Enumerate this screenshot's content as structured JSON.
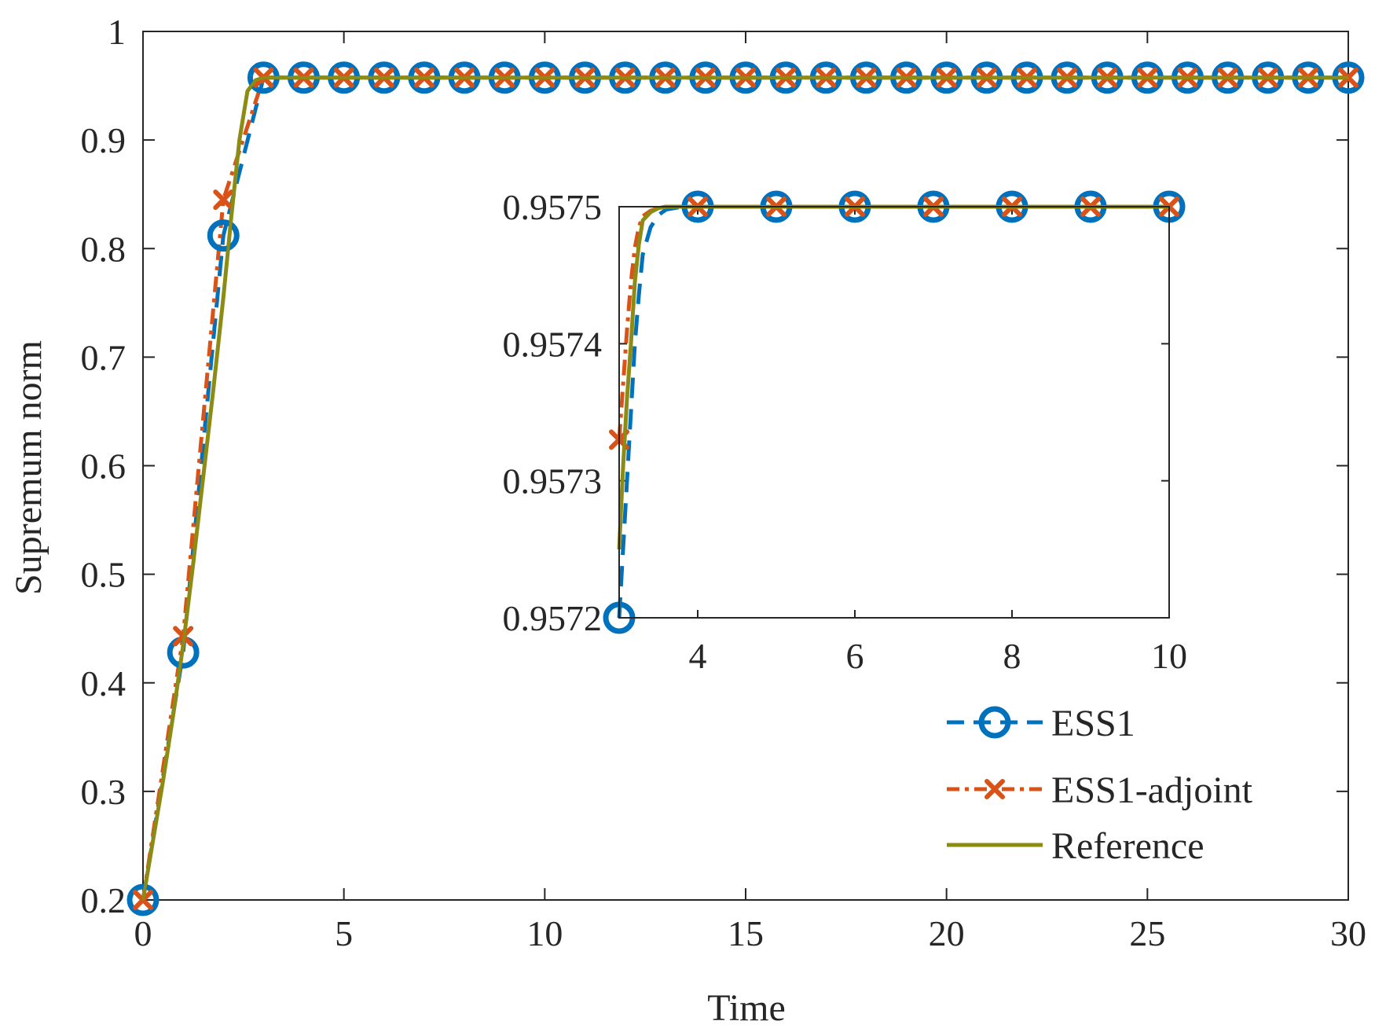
{
  "chart_data": {
    "type": "line",
    "title": "",
    "xlabel": "Time",
    "ylabel": "Supremum norm",
    "xlim": [
      0,
      30
    ],
    "ylim": [
      0.2,
      1
    ],
    "xticks": [
      "0",
      "5",
      "10",
      "15",
      "20",
      "25",
      "30"
    ],
    "yticks": [
      "0.2",
      "0.3",
      "0.4",
      "0.5",
      "0.6",
      "0.7",
      "0.8",
      "0.9",
      "1"
    ],
    "grid": false,
    "legend": {
      "placement": "bottom-right",
      "entries": [
        "ESS1",
        "ESS1-adjoint",
        "Reference"
      ]
    },
    "colors": {
      "ESS1": "#0072BD",
      "ESS1-adjoint": "#D95319",
      "Reference": "#8C8C14",
      "axes": "#262626"
    },
    "series": [
      {
        "name": "ESS1",
        "style": "dashed line with circle markers",
        "x": [
          0,
          1,
          2,
          3,
          4,
          5,
          6,
          7,
          8,
          9,
          10,
          11,
          12,
          13,
          14,
          15,
          16,
          17,
          18,
          19,
          20,
          21,
          22,
          23,
          24,
          25,
          26,
          27,
          28,
          29,
          30
        ],
        "y": [
          0.2,
          0.428,
          0.812,
          0.9575,
          0.9575,
          0.9575,
          0.9575,
          0.9575,
          0.9575,
          0.9575,
          0.9575,
          0.9575,
          0.9575,
          0.9575,
          0.9575,
          0.9575,
          0.9575,
          0.9575,
          0.9575,
          0.9575,
          0.9575,
          0.9575,
          0.9575,
          0.9575,
          0.9575,
          0.9575,
          0.9575,
          0.9575,
          0.9575,
          0.9575,
          0.9575
        ]
      },
      {
        "name": "ESS1-adjoint",
        "style": "dash-dot line with x markers",
        "x": [
          0,
          1,
          2,
          3,
          4,
          5,
          6,
          7,
          8,
          9,
          10,
          11,
          12,
          13,
          14,
          15,
          16,
          17,
          18,
          19,
          20,
          21,
          22,
          23,
          24,
          25,
          26,
          27,
          28,
          29,
          30
        ],
        "y": [
          0.2,
          0.443,
          0.845,
          0.9575,
          0.9575,
          0.9575,
          0.9575,
          0.9575,
          0.9575,
          0.9575,
          0.9575,
          0.9575,
          0.9575,
          0.9575,
          0.9575,
          0.9575,
          0.9575,
          0.9575,
          0.9575,
          0.9575,
          0.9575,
          0.9575,
          0.9575,
          0.9575,
          0.9575,
          0.9575,
          0.9575,
          0.9575,
          0.9575,
          0.9575,
          0.9575
        ]
      },
      {
        "name": "Reference",
        "style": "solid line",
        "x": [
          0,
          0.25,
          0.5,
          0.75,
          1,
          1.25,
          1.5,
          1.75,
          2,
          2.2,
          2.4,
          2.6,
          2.8,
          3,
          30
        ],
        "y": [
          0.2,
          0.255,
          0.31,
          0.37,
          0.435,
          0.51,
          0.59,
          0.67,
          0.755,
          0.83,
          0.9,
          0.945,
          0.955,
          0.9575,
          0.9575
        ]
      }
    ],
    "inset": {
      "type": "line",
      "xlim": [
        3,
        10
      ],
      "ylim": [
        0.9572,
        0.9575
      ],
      "xticks": [
        "4",
        "6",
        "8",
        "10"
      ],
      "yticks": [
        "0.9572",
        "0.9573",
        "0.9574",
        "0.9575"
      ],
      "series": [
        {
          "name": "ESS1",
          "x": [
            3,
            4,
            5,
            6,
            7,
            8,
            9,
            10
          ],
          "y": [
            0.9572,
            0.9575,
            0.9575,
            0.9575,
            0.9575,
            0.9575,
            0.9575,
            0.9575
          ],
          "curve_x": [
            3,
            3.05,
            3.1,
            3.15,
            3.2,
            3.25,
            3.3,
            3.4,
            3.5,
            3.6,
            3.8,
            4,
            10
          ],
          "curve_y": [
            0.9572,
            0.95725,
            0.9573,
            0.95735,
            0.9574,
            0.957435,
            0.957465,
            0.957485,
            0.957494,
            0.957498,
            0.9575,
            0.9575,
            0.9575
          ]
        },
        {
          "name": "ESS1-adjoint",
          "x": [
            3,
            4,
            5,
            6,
            7,
            8,
            9,
            10
          ],
          "y": [
            0.95733,
            0.9575,
            0.9575,
            0.9575,
            0.9575,
            0.9575,
            0.9575,
            0.9575
          ],
          "curve_x": [
            3,
            3.05,
            3.1,
            3.15,
            3.2,
            3.25,
            3.3,
            3.4,
            3.5,
            3.6,
            3.8,
            4,
            10
          ],
          "curve_y": [
            0.95733,
            0.95737,
            0.95741,
            0.957445,
            0.95747,
            0.957485,
            0.957493,
            0.957497,
            0.957499,
            0.9575,
            0.9575,
            0.9575,
            0.9575
          ]
        },
        {
          "name": "Reference",
          "curve_x": [
            3,
            3.05,
            3.1,
            3.15,
            3.2,
            3.25,
            3.3,
            3.4,
            3.5,
            3.6,
            3.8,
            4,
            10
          ],
          "curve_y": [
            0.95725,
            0.95731,
            0.95736,
            0.9574,
            0.957445,
            0.957472,
            0.95749,
            0.957496,
            0.957499,
            0.9575,
            0.9575,
            0.9575,
            0.9575
          ]
        }
      ]
    }
  }
}
